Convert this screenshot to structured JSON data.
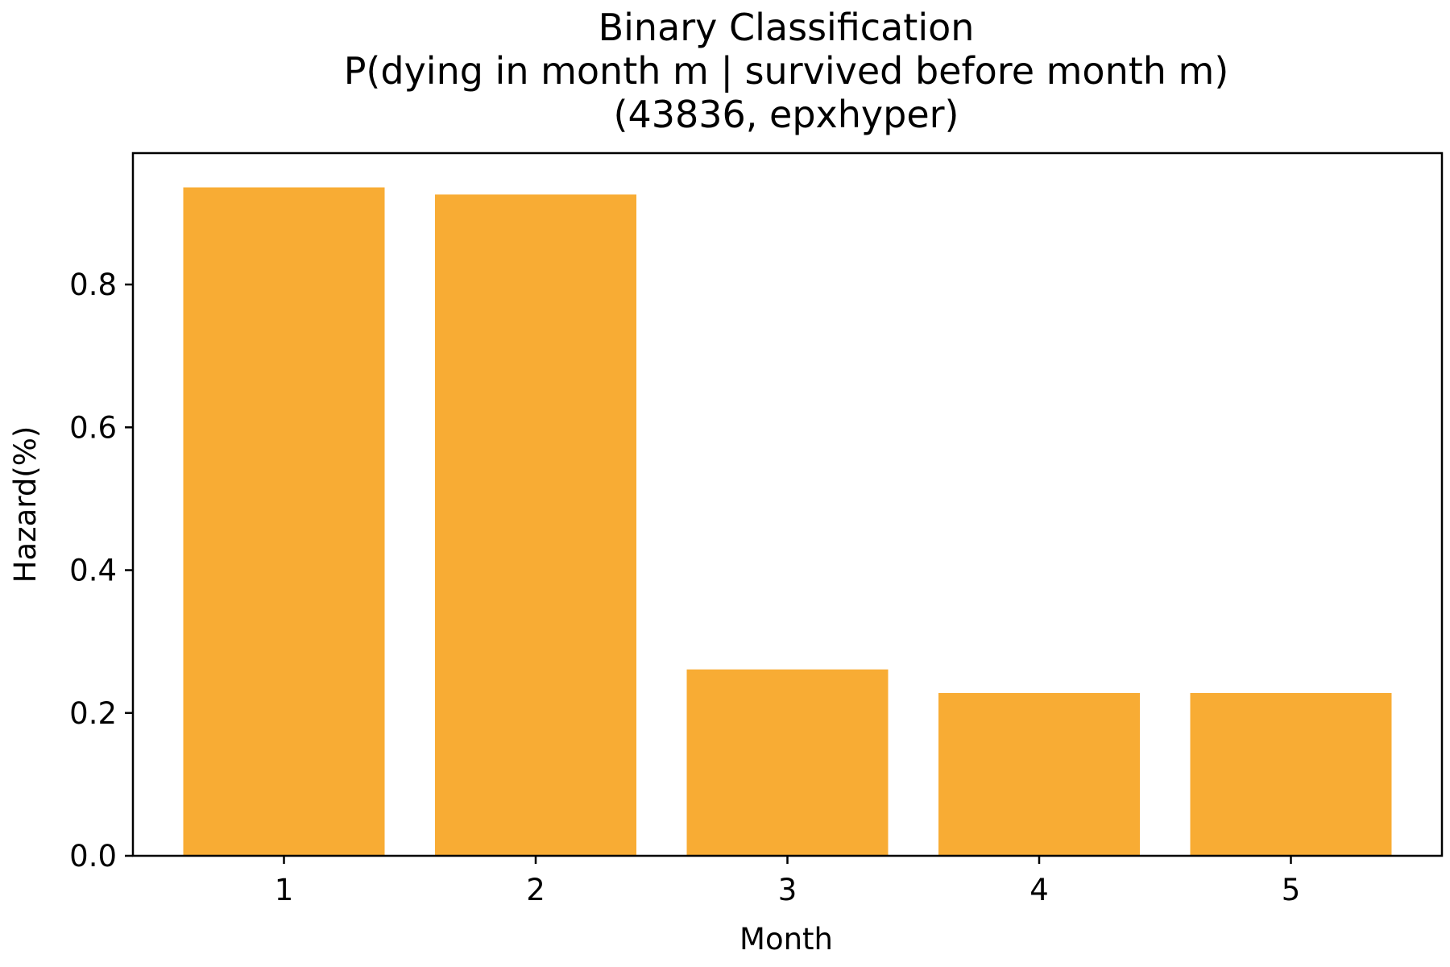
{
  "chart_data": {
    "type": "bar",
    "title_lines": [
      "Binary Classification",
      "P(dying in month m | survived before month m)",
      "(43836, epxhyper)"
    ],
    "xlabel": "Month",
    "ylabel": "Hazard(%)",
    "categories": [
      "1",
      "2",
      "3",
      "4",
      "5"
    ],
    "values": [
      0.936,
      0.926,
      0.261,
      0.228,
      0.228
    ],
    "ylim": [
      0,
      0.984
    ],
    "yticks": [
      "0.0",
      "0.2",
      "0.4",
      "0.6",
      "0.8"
    ],
    "bar_color": "#f8ac34",
    "grid": false,
    "legend": false
  }
}
